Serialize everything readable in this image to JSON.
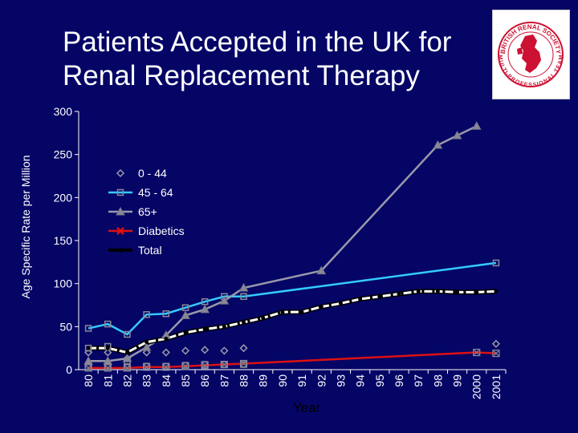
{
  "title_line1": "Patients Accepted in the UK for",
  "title_line2": "Renal Replacement Therapy",
  "logo": {
    "top_text": "BRITISH RENAL SOCIETY",
    "bottom_text": "MULTI-PROFESSIONAL TEAM"
  },
  "colors": {
    "background": "#050566",
    "grid": "#000000",
    "series_0_44": "#9999aa",
    "series_45_64": "#33ccff",
    "series_65plus": "#9999aa",
    "series_diabetics": "#dd1111",
    "series_total": "#ffffff"
  },
  "chart_data": {
    "type": "line",
    "title": "Patients Accepted in the UK for Renal Replacement Therapy",
    "xlabel": "Year",
    "ylabel": "Age Specific Rate per Million",
    "ylim": [
      0,
      300
    ],
    "yticks": [
      0,
      50,
      100,
      150,
      200,
      250,
      300
    ],
    "grid": false,
    "legend_position": "upper-left inside plot",
    "categories": [
      "80",
      "81",
      "82",
      "83",
      "84",
      "85",
      "86",
      "87",
      "88",
      "89",
      "90",
      "91",
      "92",
      "93",
      "94",
      "95",
      "96",
      "97",
      "98",
      "99",
      "2000",
      "2001"
    ],
    "series": [
      {
        "name": "0 - 44",
        "marker": "diamond",
        "values": [
          20,
          20,
          13,
          20,
          20,
          22,
          23,
          22,
          25,
          null,
          null,
          null,
          null,
          null,
          null,
          null,
          null,
          null,
          null,
          null,
          null,
          30
        ]
      },
      {
        "name": "45 - 64",
        "marker": "square",
        "values": [
          48,
          53,
          41,
          64,
          65,
          72,
          79,
          85,
          85,
          null,
          null,
          null,
          null,
          null,
          null,
          null,
          null,
          null,
          null,
          null,
          null,
          124
        ]
      },
      {
        "name": "65+",
        "marker": "triangle",
        "values": [
          10,
          10,
          13,
          26,
          40,
          63,
          70,
          80,
          95,
          null,
          null,
          null,
          115,
          null,
          null,
          null,
          null,
          null,
          261,
          272,
          283,
          null
        ]
      },
      {
        "name": "Diabetics",
        "marker": "x",
        "values": [
          2,
          2,
          2,
          3,
          3,
          4,
          5,
          6,
          7,
          null,
          null,
          null,
          null,
          null,
          null,
          null,
          null,
          null,
          null,
          null,
          20,
          19
        ]
      },
      {
        "name": "Total",
        "marker": "circle",
        "values": [
          25,
          25,
          20,
          32,
          36,
          43,
          47,
          50,
          55,
          60,
          67,
          67,
          73,
          77,
          82,
          85,
          88,
          91,
          91,
          90,
          90,
          91
        ]
      }
    ],
    "extra_markers": [
      {
        "series": "0 - 44 (squares)",
        "values": [
          25,
          27,
          10,
          4,
          4,
          5,
          6,
          6,
          6
        ]
      },
      {
        "series": "45 - 64 (lower squares)",
        "values": [
          3,
          3,
          3
        ]
      }
    ]
  }
}
